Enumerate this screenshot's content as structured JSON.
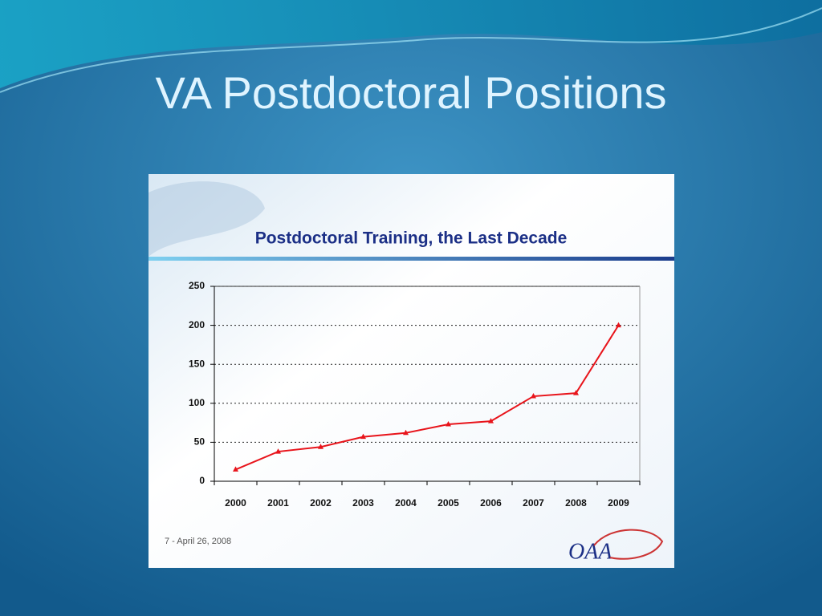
{
  "slide_title": "VA Postdoctoral Positions",
  "chart_data": {
    "type": "line",
    "title": "Postdoctoral Training, the Last Decade",
    "categories": [
      "2000",
      "2001",
      "2002",
      "2003",
      "2004",
      "2005",
      "2006",
      "2007",
      "2008",
      "2009"
    ],
    "values": [
      15,
      38,
      44,
      57,
      62,
      73,
      77,
      109,
      113,
      200
    ],
    "color": "#e8141b",
    "ylim": [
      0,
      250
    ],
    "yticks": [
      0,
      50,
      100,
      150,
      200,
      250
    ],
    "grid": true
  },
  "footer": "7 -  April 26, 2008",
  "logo": "OAA"
}
